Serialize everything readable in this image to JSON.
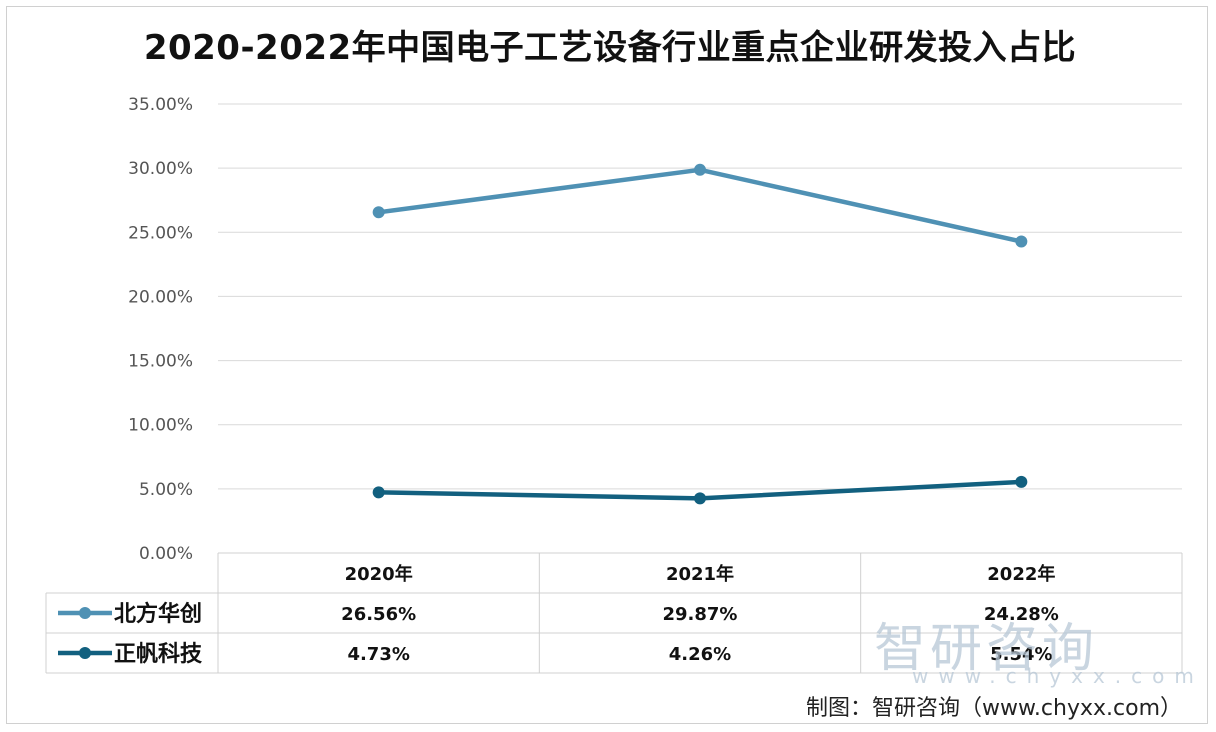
{
  "chart_data": {
    "type": "line",
    "title": "2020-2022年中国电子工艺设备行业重点企业研发投入占比",
    "categories": [
      "2020年",
      "2021年",
      "2022年"
    ],
    "series": [
      {
        "name": "北方华创",
        "values": [
          26.56,
          29.87,
          24.28
        ],
        "labels": [
          "26.56%",
          "29.87%",
          "24.28%"
        ],
        "color": "#4f91b4"
      },
      {
        "name": "正帆科技",
        "values": [
          4.73,
          4.26,
          5.54
        ],
        "labels": [
          "4.73%",
          "4.26%",
          "5.54%"
        ],
        "color": "#12607f"
      }
    ],
    "ylim": [
      0,
      35
    ],
    "yticks": [
      "0.00%",
      "5.00%",
      "10.00%",
      "15.00%",
      "20.00%",
      "25.00%",
      "30.00%",
      "35.00%"
    ],
    "grid": true,
    "legend": "data-table"
  },
  "watermark": {
    "text": "智研咨询",
    "sub": "www.chyxx.com"
  },
  "footer": "制图：智研咨询（www.chyxx.com）"
}
